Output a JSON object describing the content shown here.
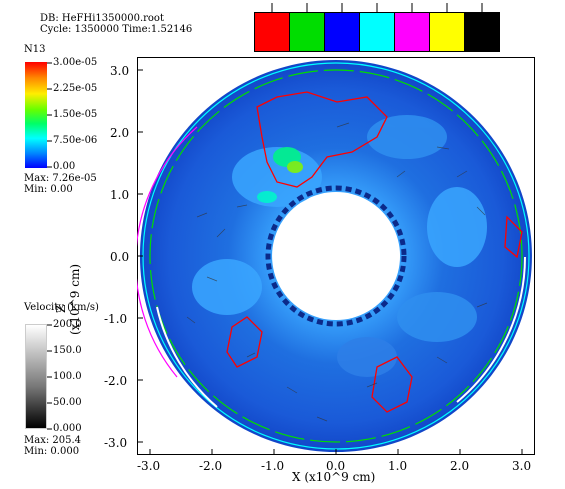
{
  "header": {
    "db": "DB: HeFHi1350000.root",
    "cycle": "Cycle: 1350000  Time:1.52146"
  },
  "contour_swatches": [
    "#ff0000",
    "#00dd00",
    "#0000ff",
    "#00ffff",
    "#ff00ff",
    "#ffff00",
    "#000000"
  ],
  "legend_n13": {
    "title": "N13",
    "labels": [
      "3.00e-05",
      "2.25e-05",
      "1.50e-05",
      "7.50e-06",
      "0.00"
    ],
    "max": "Max:  7.26e-05",
    "min": "Min:  0.00"
  },
  "legend_velocity": {
    "title": "Velocity (km/s)",
    "labels": [
      "200.0",
      "150.0",
      "100.0",
      "50.00",
      "0.000"
    ],
    "max": "Max:  205.4",
    "min": "Min:  0.000"
  },
  "axes": {
    "x_ticks": [
      "-3.0",
      "-2.0",
      "-1.0",
      "0.0",
      "1.0",
      "2.0",
      "3.0"
    ],
    "y_ticks": [
      "3.0",
      "2.0",
      "1.0",
      "0.0",
      "-1.0",
      "-2.0",
      "-3.0"
    ],
    "x_label": "X (x10^9 cm)",
    "y_label_line1": "Z",
    "y_label_line2": "(x10^9 cm)"
  },
  "colors": {
    "field_blue": "#1f6fe0",
    "field_dark": "#1246c8",
    "field_light": "#3aa6ff"
  }
}
